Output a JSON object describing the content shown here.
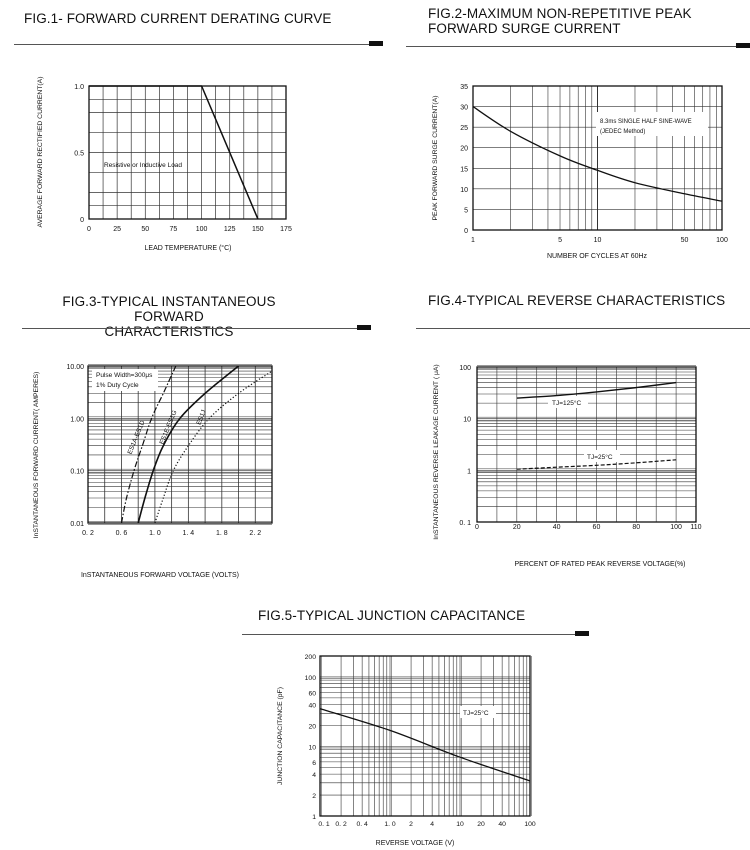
{
  "figures": {
    "fig1": {
      "title": "FIG.1- FORWARD CURRENT DERATING CURVE"
    },
    "fig2": {
      "title_line1": "FIG.2-MAXIMUM NON-REPETITIVE PEAK",
      "title_line2": "FORWARD SURGE CURRENT"
    },
    "fig3": {
      "title_line1": "FIG.3-TYPICAL INSTANTANEOUS FORWARD",
      "title_line2": "CHARACTERISTICS"
    },
    "fig4": {
      "title": "FIG.4-TYPICAL REVERSE CHARACTERISTICS"
    },
    "fig5": {
      "title": "FIG.5-TYPICAL JUNCTION CAPACITANCE"
    }
  },
  "chart_data": [
    {
      "id": "fig1",
      "type": "line",
      "title": "FIG.1- FORWARD CURRENT DERATING CURVE",
      "xlabel": "LEAD TEMPERATURE (°C)",
      "ylabel": "AVERAGE FORWARD RECTIFIED CURRENT(A)",
      "xlim": [
        0,
        175
      ],
      "ylim": [
        0,
        1.0
      ],
      "xticks": [
        0,
        25,
        50,
        75,
        100,
        125,
        150,
        175
      ],
      "xtick_labels": [
        "0",
        "25",
        "50",
        "75",
        "100",
        "125",
        "150",
        "175"
      ],
      "yticks": [
        0,
        0.5,
        1.0
      ],
      "ytick_labels": [
        "0",
        "0.5",
        "1.0"
      ],
      "series": [
        {
          "name": "derating",
          "x": [
            0,
            100,
            150
          ],
          "y": [
            1.0,
            1.0,
            0
          ]
        }
      ],
      "annotations": [
        "Resistive or Inductive Load"
      ]
    },
    {
      "id": "fig2",
      "type": "line",
      "title": "FIG.2-MAXIMUM NON-REPETITIVE PEAK FORWARD SURGE CURRENT",
      "xlabel": "NUMBER OF CYCLES AT 60Hz",
      "ylabel": "PEAK FORWARD SURGE CURRENT(A)",
      "xscale": "log",
      "xlim": [
        1,
        100
      ],
      "ylim": [
        0,
        35
      ],
      "xticks": [
        1,
        5,
        10,
        50,
        100
      ],
      "xtick_labels": [
        "1",
        "5",
        "10",
        "50",
        "100"
      ],
      "yticks": [
        0,
        5,
        10,
        15,
        20,
        25,
        30,
        35
      ],
      "ytick_labels": [
        "0",
        "5",
        "10",
        "15",
        "20",
        "25",
        "30",
        "35"
      ],
      "series": [
        {
          "name": "surge",
          "x": [
            1,
            2,
            5,
            10,
            20,
            50,
            100
          ],
          "y": [
            30,
            24,
            18,
            14.5,
            11.5,
            8.8,
            7
          ]
        }
      ],
      "annotations": [
        "8.3ms SINGLE HALF SINE-WAVE",
        "(JEDEC Method)"
      ]
    },
    {
      "id": "fig3",
      "type": "line",
      "title": "FIG.3-TYPICAL INSTANTANEOUS FORWARD CHARACTERISTICS",
      "xlabel": "InSTANTANEOUS FORWARD VOLTAGE (VOLTS)",
      "ylabel": "InSTANTANEOUS FORWARD CURRENT( AMPERES)",
      "yscale": "log",
      "xlim": [
        0.2,
        2.4
      ],
      "ylim": [
        0.01,
        10
      ],
      "xticks": [
        0.2,
        0.6,
        1.0,
        1.4,
        1.8,
        2.2
      ],
      "xtick_labels": [
        "0. 2",
        "0. 6",
        "1. 0",
        "1. 4",
        "1. 8",
        "2. 2"
      ],
      "yticks": [
        0.01,
        0.1,
        1,
        10
      ],
      "ytick_labels": [
        "0.01",
        "0.10",
        "1.00",
        "10.00"
      ],
      "series": [
        {
          "name": "ES1A-ES1D",
          "style": "dash-dot",
          "x": [
            0.6,
            0.66,
            0.75,
            0.85,
            0.96,
            1.1,
            1.25
          ],
          "y": [
            0.01,
            0.03,
            0.1,
            0.3,
            1,
            3,
            10
          ]
        },
        {
          "name": "ES1E-ES1G",
          "style": "solid",
          "x": [
            0.8,
            0.88,
            0.98,
            1.1,
            1.3,
            1.6,
            2.0
          ],
          "y": [
            0.01,
            0.03,
            0.1,
            0.3,
            1,
            3,
            10
          ]
        },
        {
          "name": "ES1J",
          "style": "dotted",
          "x": [
            1.0,
            1.1,
            1.22,
            1.4,
            1.65,
            2.0,
            2.4
          ],
          "y": [
            0.01,
            0.03,
            0.1,
            0.3,
            1,
            3,
            8
          ]
        }
      ],
      "annotations": [
        "Pulse Width=300μs",
        "1% Duty Cycle"
      ]
    },
    {
      "id": "fig4",
      "type": "line",
      "title": "FIG.4-TYPICAL REVERSE CHARACTERISTICS",
      "xlabel": "PERCENT OF RATED PEAK REVERSE VOLTAGE(%)",
      "ylabel": "InSTANTANEOUS REVERSE LEAKAGE CURRENT ( μA)",
      "yscale": "log",
      "xlim": [
        0,
        110
      ],
      "ylim": [
        0.1,
        100
      ],
      "xticks": [
        0,
        20,
        40,
        60,
        80,
        100,
        110
      ],
      "xtick_labels": [
        "0",
        "20",
        "40",
        "60",
        "80",
        "100",
        "110"
      ],
      "yticks": [
        0.1,
        1,
        10,
        100
      ],
      "ytick_labels": [
        "0. 1",
        "1",
        "10",
        "100"
      ],
      "series": [
        {
          "name": "TJ=125°C",
          "style": "solid",
          "x": [
            20,
            40,
            60,
            80,
            100
          ],
          "y": [
            25,
            28,
            33,
            40,
            50
          ]
        },
        {
          "name": "TJ=25°C",
          "style": "dashed",
          "x": [
            20,
            40,
            60,
            80,
            100
          ],
          "y": [
            1.05,
            1.15,
            1.25,
            1.4,
            1.6
          ]
        }
      ],
      "series_labels": [
        "TJ=125°C",
        "TJ=25°C"
      ]
    },
    {
      "id": "fig5",
      "type": "line",
      "title": "FIG.5-TYPICAL JUNCTION CAPACITANCE",
      "xlabel": "REVERSE VOLTAGE (V)",
      "ylabel": "JUNCTION CAPACITANCE (pF)",
      "xscale": "log",
      "yscale": "log",
      "xlim": [
        0.1,
        100
      ],
      "ylim": [
        1,
        200
      ],
      "xticks": [
        0.1,
        0.2,
        0.4,
        1.0,
        2,
        4,
        10,
        20,
        40,
        100
      ],
      "xtick_labels": [
        "0. 1",
        "0. 2",
        "0. 4",
        "1. 0",
        "2",
        "4",
        "10",
        "20",
        "40",
        "100"
      ],
      "yticks": [
        1,
        2,
        4,
        6,
        10,
        20,
        40,
        60,
        100,
        200
      ],
      "ytick_labels": [
        "1",
        "2",
        "4",
        "6",
        "10",
        "20",
        "40",
        "60",
        "100",
        "200"
      ],
      "series": [
        {
          "name": "capacitance",
          "x": [
            0.1,
            1,
            10,
            100
          ],
          "y": [
            35,
            17,
            7,
            3.2
          ]
        }
      ],
      "series_labels": [
        "TJ=25°C"
      ]
    }
  ]
}
